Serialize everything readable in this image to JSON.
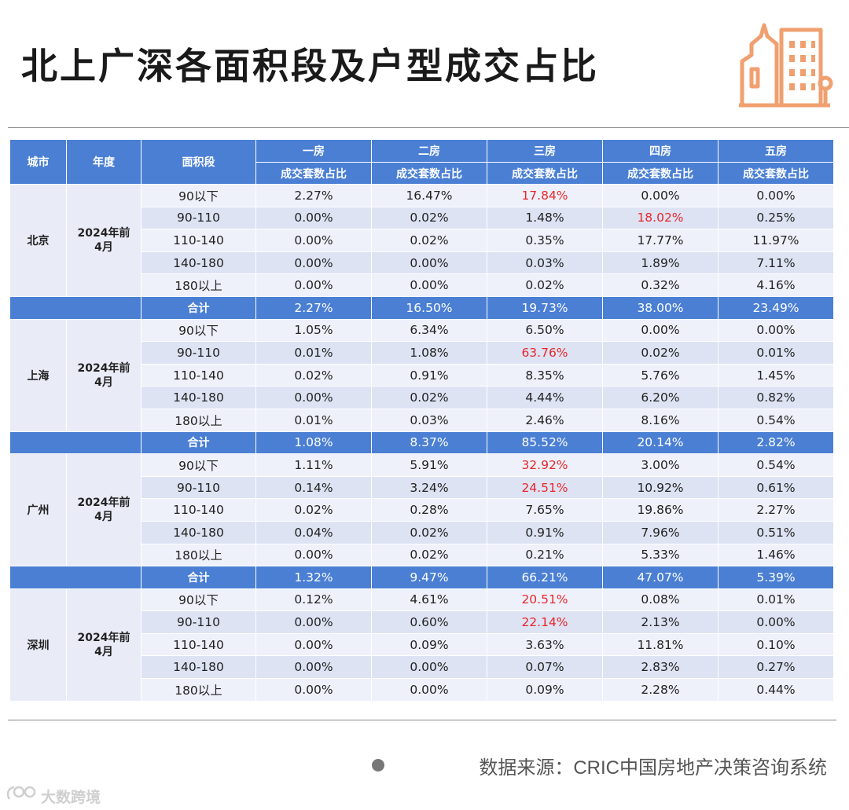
{
  "title": "北上广深各面积段及户型成交占比",
  "source": "数据来源：CRIC中国房地产决策咨询系统",
  "watermark": "大数跨境",
  "colors": {
    "header": "#4a7fd4",
    "highlight": "#e8262b",
    "row_light": "#eef1fa",
    "row_dark": "#dde3f3",
    "icon": "#f0a070"
  },
  "icons": {
    "logo": "building-icon",
    "bullet": "dot-icon"
  },
  "table": {
    "header": {
      "city": "城市",
      "year": "年度",
      "area": "面积段",
      "rooms": [
        "一房",
        "二房",
        "三房",
        "四房",
        "五房"
      ],
      "sub": "成交套数占比"
    },
    "sum_label": "合计",
    "cities": [
      {
        "name": "北京",
        "year": "2024年前4月",
        "rows": [
          {
            "area": "90以下",
            "values": [
              "2.27%",
              "16.47%",
              "17.84%",
              "0.00%",
              "0.00%"
            ],
            "hl": [
              2
            ]
          },
          {
            "area": "90-110",
            "values": [
              "0.00%",
              "0.02%",
              "1.48%",
              "18.02%",
              "0.25%"
            ],
            "hl": [
              3
            ]
          },
          {
            "area": "110-140",
            "values": [
              "0.00%",
              "0.02%",
              "0.35%",
              "17.77%",
              "11.97%"
            ],
            "hl": []
          },
          {
            "area": "140-180",
            "values": [
              "0.00%",
              "0.00%",
              "0.03%",
              "1.89%",
              "7.11%"
            ],
            "hl": []
          },
          {
            "area": "180以上",
            "values": [
              "0.00%",
              "0.00%",
              "0.02%",
              "0.32%",
              "4.16%"
            ],
            "hl": []
          }
        ],
        "total": [
          "2.27%",
          "16.50%",
          "19.73%",
          "38.00%",
          "23.49%"
        ]
      },
      {
        "name": "上海",
        "year": "2024年前4月",
        "rows": [
          {
            "area": "90以下",
            "values": [
              "1.05%",
              "6.34%",
              "6.50%",
              "0.00%",
              "0.00%"
            ],
            "hl": []
          },
          {
            "area": "90-110",
            "values": [
              "0.01%",
              "1.08%",
              "63.76%",
              "0.02%",
              "0.01%"
            ],
            "hl": [
              2
            ]
          },
          {
            "area": "110-140",
            "values": [
              "0.02%",
              "0.91%",
              "8.35%",
              "5.76%",
              "1.45%"
            ],
            "hl": []
          },
          {
            "area": "140-180",
            "values": [
              "0.00%",
              "0.02%",
              "4.44%",
              "6.20%",
              "0.82%"
            ],
            "hl": []
          },
          {
            "area": "180以上",
            "values": [
              "0.01%",
              "0.03%",
              "2.46%",
              "8.16%",
              "0.54%"
            ],
            "hl": []
          }
        ],
        "total": [
          "1.08%",
          "8.37%",
          "85.52%",
          "20.14%",
          "2.82%"
        ]
      },
      {
        "name": "广州",
        "year": "2024年前4月",
        "rows": [
          {
            "area": "90以下",
            "values": [
              "1.11%",
              "5.91%",
              "32.92%",
              "3.00%",
              "0.54%"
            ],
            "hl": [
              2
            ]
          },
          {
            "area": "90-110",
            "values": [
              "0.14%",
              "3.24%",
              "24.51%",
              "10.92%",
              "0.61%"
            ],
            "hl": [
              2
            ]
          },
          {
            "area": "110-140",
            "values": [
              "0.02%",
              "0.28%",
              "7.65%",
              "19.86%",
              "2.27%"
            ],
            "hl": []
          },
          {
            "area": "140-180",
            "values": [
              "0.04%",
              "0.02%",
              "0.91%",
              "7.96%",
              "0.51%"
            ],
            "hl": []
          },
          {
            "area": "180以上",
            "values": [
              "0.00%",
              "0.02%",
              "0.21%",
              "5.33%",
              "1.46%"
            ],
            "hl": []
          }
        ],
        "total": [
          "1.32%",
          "9.47%",
          "66.21%",
          "47.07%",
          "5.39%"
        ]
      },
      {
        "name": "深圳",
        "year": "2024年前4月",
        "rows": [
          {
            "area": "90以下",
            "values": [
              "0.12%",
              "4.61%",
              "20.51%",
              "0.08%",
              "0.01%"
            ],
            "hl": [
              2
            ]
          },
          {
            "area": "90-110",
            "values": [
              "0.00%",
              "0.60%",
              "22.14%",
              "2.13%",
              "0.00%"
            ],
            "hl": [
              2
            ]
          },
          {
            "area": "110-140",
            "values": [
              "0.00%",
              "0.09%",
              "3.63%",
              "11.81%",
              "0.10%"
            ],
            "hl": []
          },
          {
            "area": "140-180",
            "values": [
              "0.00%",
              "0.00%",
              "0.07%",
              "2.83%",
              "0.27%"
            ],
            "hl": []
          },
          {
            "area": "180以上",
            "values": [
              "0.00%",
              "0.00%",
              "0.09%",
              "2.28%",
              "0.44%"
            ],
            "hl": []
          }
        ],
        "total": null
      }
    ]
  }
}
